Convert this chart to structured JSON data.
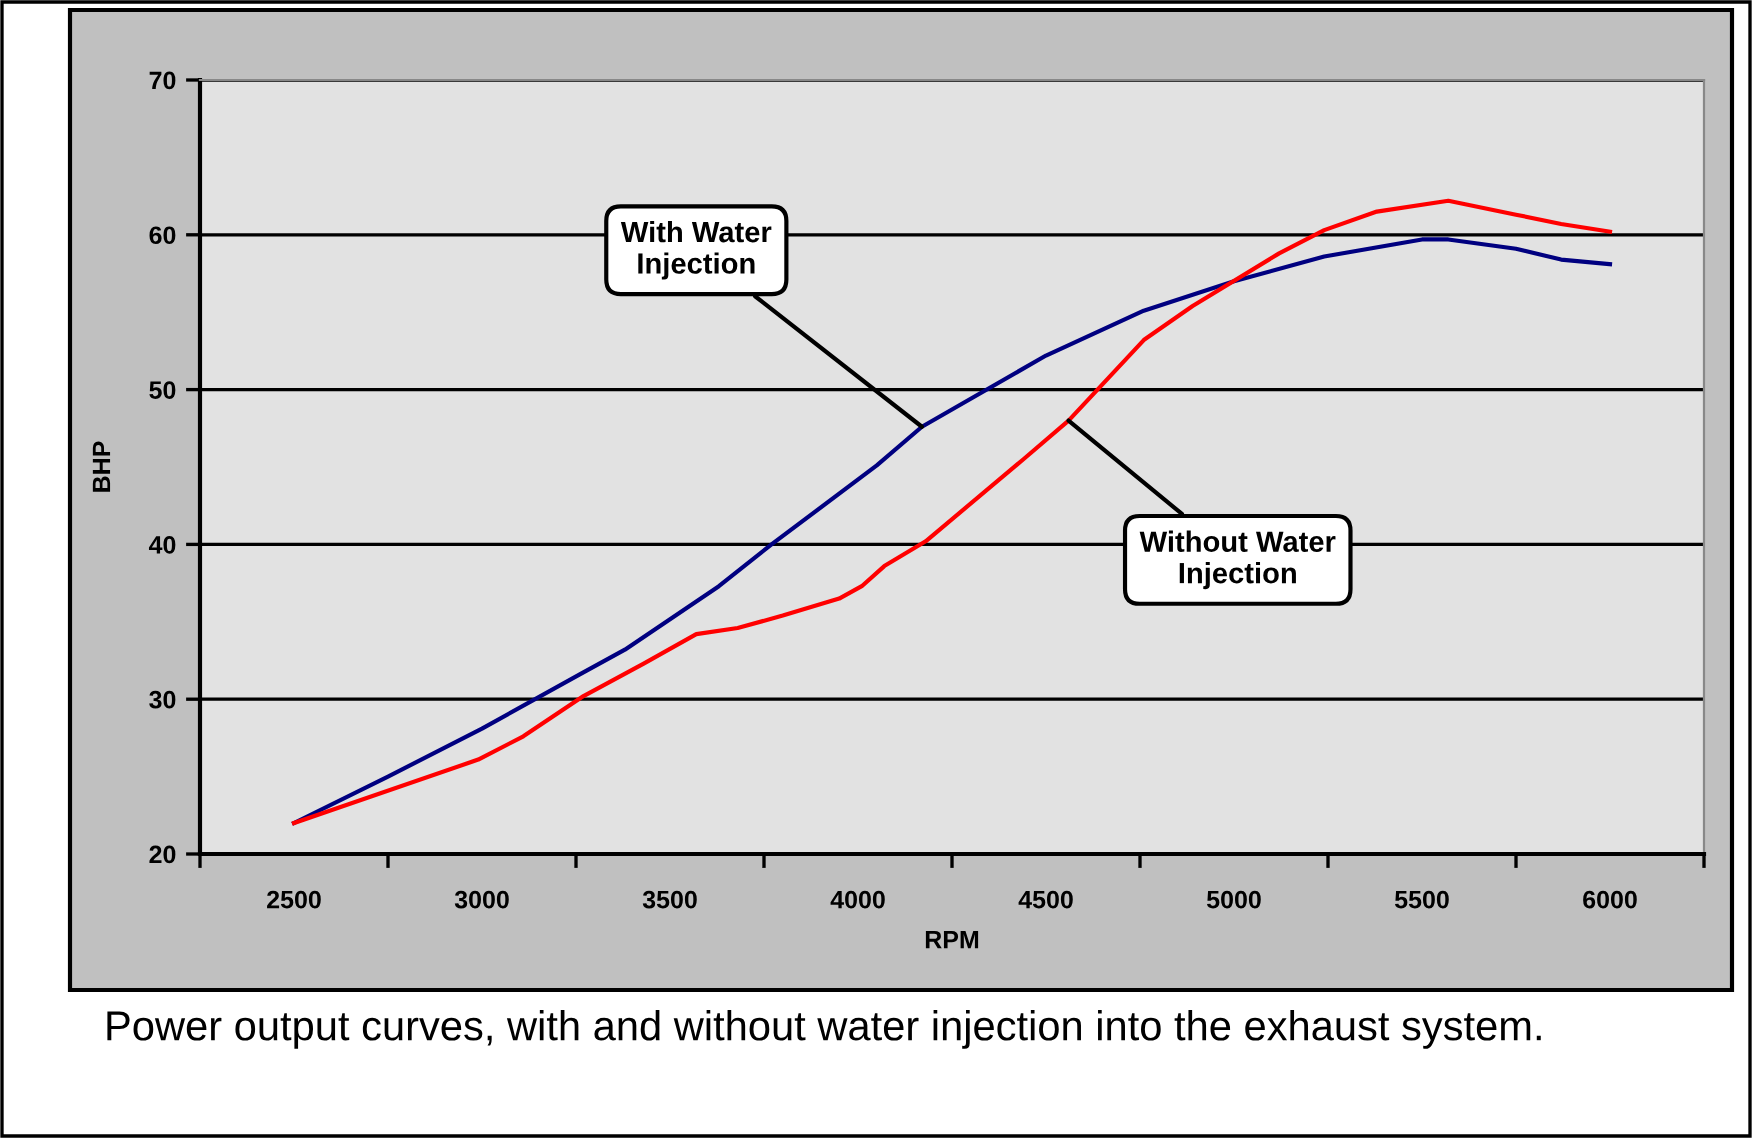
{
  "chart_data": {
    "type": "line",
    "xlabel": "RPM",
    "ylabel": "BHP",
    "xlim": [
      2250,
      6250
    ],
    "xticks": [
      {
        "value": 2250,
        "label": null
      },
      2500,
      {
        "value": 2750,
        "label": null
      },
      3000,
      {
        "value": 3250,
        "label": null
      },
      3500,
      {
        "value": 3750,
        "label": null
      },
      4000,
      {
        "value": 4250,
        "label": null
      },
      4500,
      {
        "value": 4750,
        "label": null
      },
      5000,
      {
        "value": 5250,
        "label": null
      },
      5500,
      {
        "value": 5750,
        "label": null
      },
      6000,
      {
        "value": 6250,
        "label": null
      }
    ],
    "ylim": [
      20,
      70
    ],
    "yticks": [
      20,
      30,
      40,
      50,
      60,
      70
    ],
    "grid": "y",
    "legend": false,
    "marker": "none",
    "line_style": "solid",
    "series": [
      {
        "color": "#000080",
        "x": [
          2500,
          2750,
          3000,
          3260,
          3380,
          3630,
          3770,
          4050,
          4170,
          4500,
          4760,
          5000,
          5240,
          5500,
          5570,
          5750,
          5870,
          6000
        ],
        "values": [
          22.0,
          25.0,
          28.1,
          31.6,
          33.2,
          37.3,
          40.0,
          45.1,
          47.6,
          52.2,
          55.1,
          57.0,
          58.6,
          59.7,
          59.7,
          59.1,
          58.4,
          58.1
        ]
      },
      {
        "color": "#ff0000",
        "x": [
          2500,
          2620,
          2990,
          3110,
          3270,
          3430,
          3570,
          3680,
          3800,
          3950,
          4010,
          4070,
          4180,
          4440,
          4560,
          4760,
          4890,
          5120,
          5240,
          5380,
          5570,
          5750,
          5870,
          6000
        ],
        "values": [
          22.0,
          23.0,
          26.1,
          27.6,
          30.2,
          32.3,
          34.2,
          34.6,
          35.4,
          36.5,
          37.3,
          38.6,
          40.2,
          45.5,
          48.0,
          53.2,
          55.4,
          58.8,
          60.3,
          61.5,
          62.2,
          61.3,
          60.7,
          60.2
        ]
      }
    ],
    "annotations": [
      {
        "text": "With Water Injection",
        "x": 4170,
        "y": 47.6
      },
      {
        "text": "Without Water Injection",
        "x": 4560,
        "y": 48.0
      },
      "Power output curves, with and without water injection into the exhaust system."
    ]
  }
}
